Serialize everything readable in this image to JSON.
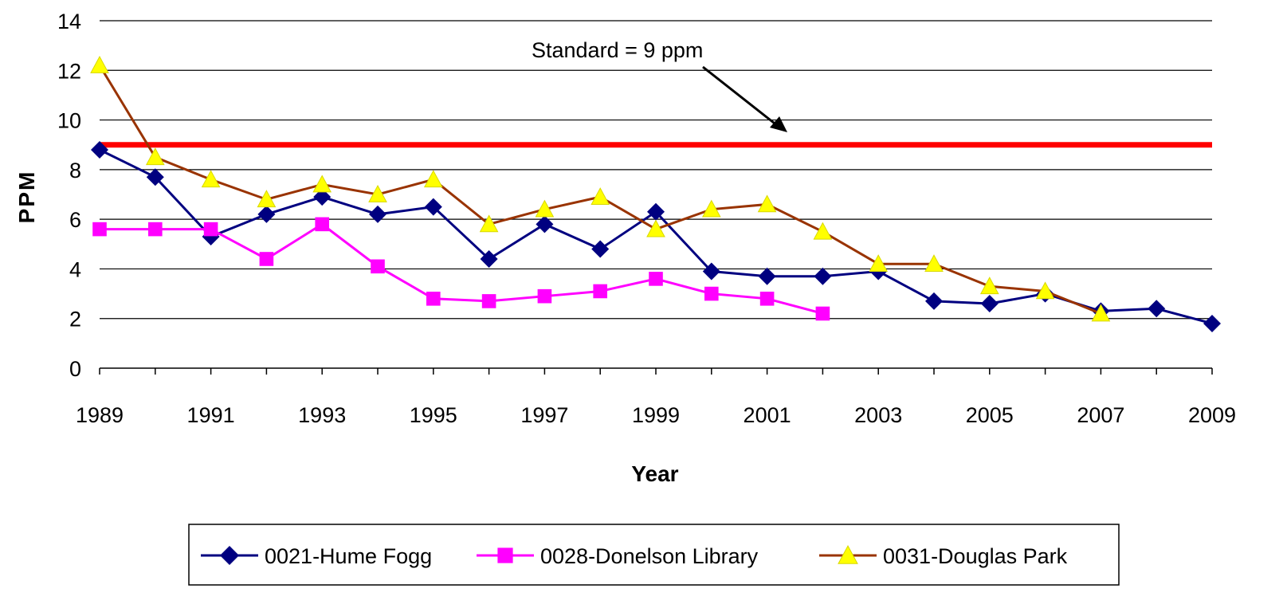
{
  "chart_data": {
    "type": "line",
    "title": "",
    "xlabel": "Year",
    "ylabel": "PPM",
    "xlim": [
      1989,
      2009
    ],
    "ylim": [
      0,
      14
    ],
    "x_ticks": [
      1989,
      1991,
      1993,
      1995,
      1997,
      1999,
      2001,
      2003,
      2005,
      2007,
      2009
    ],
    "y_ticks": [
      0,
      2,
      4,
      6,
      8,
      10,
      12,
      14
    ],
    "grid": "horizontal",
    "legend_position": "bottom",
    "standard_line": {
      "value": 9,
      "label": "Standard = 9 ppm",
      "color": "#ff0000"
    },
    "series": [
      {
        "name": "0021-Hume Fogg",
        "color": "#000080",
        "marker": "diamond",
        "marker_color": "#000080",
        "x": [
          1989,
          1990,
          1991,
          1992,
          1993,
          1994,
          1995,
          1996,
          1997,
          1998,
          1999,
          2000,
          2001,
          2002,
          2003,
          2004,
          2005,
          2006,
          2007,
          2008,
          2009
        ],
        "values": [
          8.8,
          7.7,
          5.3,
          6.2,
          6.9,
          6.2,
          6.5,
          4.4,
          5.8,
          4.8,
          6.3,
          3.9,
          3.7,
          3.7,
          3.9,
          2.7,
          2.6,
          3.0,
          2.3,
          2.4,
          1.8
        ]
      },
      {
        "name": "0028-Donelson Library",
        "color": "#ff00ff",
        "marker": "square",
        "marker_color": "#ff00ff",
        "x": [
          1989,
          1990,
          1991,
          1992,
          1993,
          1994,
          1995,
          1996,
          1997,
          1998,
          1999,
          2000,
          2001,
          2002
        ],
        "values": [
          5.6,
          5.6,
          5.6,
          4.4,
          5.8,
          4.1,
          2.8,
          2.7,
          2.9,
          3.1,
          3.6,
          3.0,
          2.8,
          2.2
        ]
      },
      {
        "name": "0031-Douglas Park",
        "color": "#993300",
        "marker": "triangle",
        "marker_color": "#ffff00",
        "x": [
          1989,
          1990,
          1991,
          1992,
          1993,
          1994,
          1995,
          1996,
          1997,
          1998,
          1999,
          2000,
          2001,
          2002,
          2003,
          2004,
          2005,
          2006,
          2007
        ],
        "values": [
          12.2,
          8.5,
          7.6,
          6.8,
          7.4,
          7.0,
          7.6,
          5.8,
          6.4,
          6.9,
          5.6,
          6.4,
          6.6,
          5.5,
          4.2,
          4.2,
          3.3,
          3.1,
          2.2
        ]
      }
    ]
  }
}
